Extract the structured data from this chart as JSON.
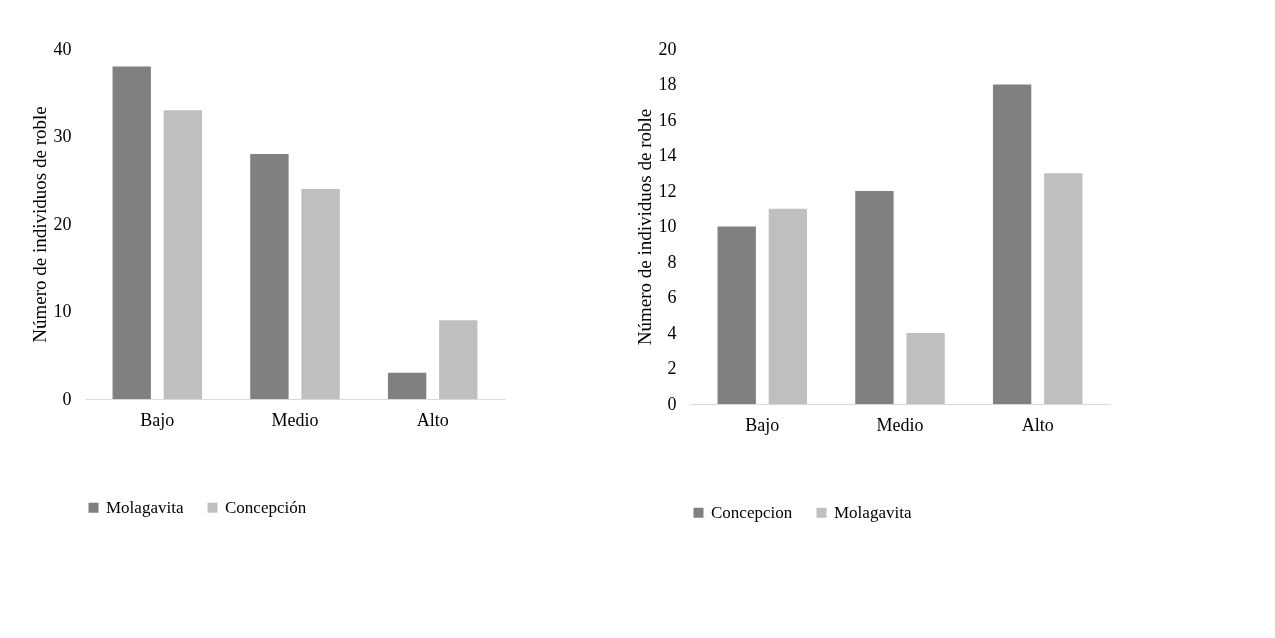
{
  "chart_data": [
    {
      "type": "bar",
      "ylabel": "Número de individuos de roble",
      "categories": [
        "Bajo",
        "Medio",
        "Alto"
      ],
      "series": [
        {
          "name": "Molagavita",
          "color": "#808080",
          "values": [
            38,
            28,
            3
          ]
        },
        {
          "name": "Concepción",
          "color": "#bfbfbf",
          "values": [
            33,
            24,
            9
          ]
        }
      ],
      "ylim": [
        0,
        40
      ],
      "yticks": [
        0,
        10,
        20,
        30,
        40
      ],
      "grid": false,
      "legend": "bottom"
    },
    {
      "type": "bar",
      "ylabel": "Número de individuos de roble",
      "categories": [
        "Bajo",
        "Medio",
        "Alto"
      ],
      "series": [
        {
          "name": "Concepcion",
          "color": "#808080",
          "values": [
            10,
            12,
            18
          ]
        },
        {
          "name": "Molagavita",
          "color": "#bfbfbf",
          "values": [
            11,
            4,
            13
          ]
        }
      ],
      "ylim": [
        0,
        20
      ],
      "yticks": [
        0,
        2,
        4,
        6,
        8,
        10,
        12,
        14,
        16,
        18,
        20
      ],
      "grid": false,
      "legend": "bottom"
    }
  ]
}
